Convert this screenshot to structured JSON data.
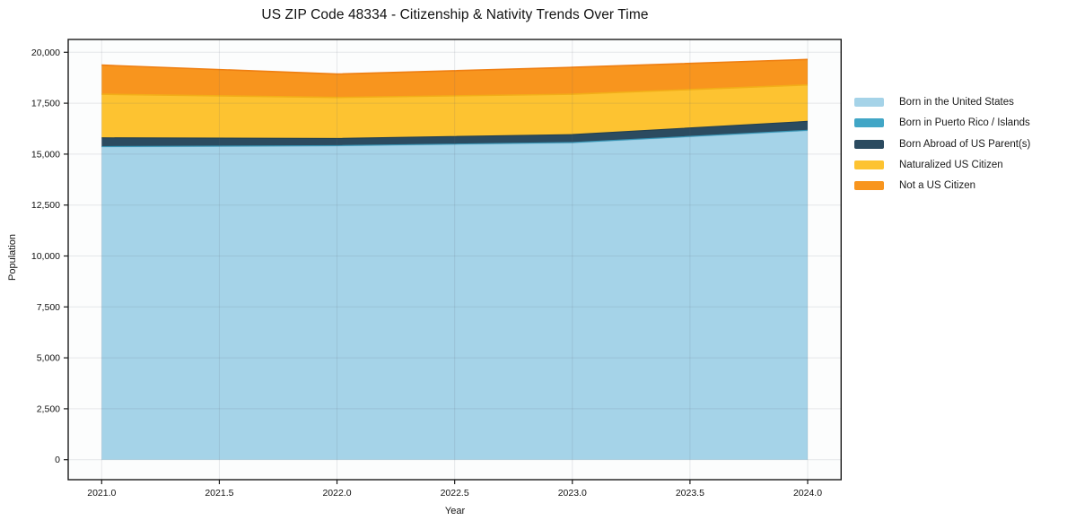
{
  "title": "US ZIP Code 48334 - Citizenship & Nativity Trends Over Time",
  "chart_data": {
    "type": "area",
    "stacked": true,
    "title": "US ZIP Code 48334 - Citizenship & Nativity Trends Over Time",
    "xlabel": "Year",
    "ylabel": "Population",
    "x": [
      2021,
      2022,
      2023,
      2024
    ],
    "series": [
      {
        "name": "Born in the United States",
        "color": "#a5d3e8",
        "edge": "#8cc3dc",
        "values": [
          15350,
          15400,
          15550,
          16150
        ]
      },
      {
        "name": "Born in Puerto Rico / Islands",
        "color": "#41a6c6",
        "edge": "#3795b5",
        "values": [
          20,
          20,
          20,
          20
        ]
      },
      {
        "name": "Born Abroad of US Parent(s)",
        "color": "#2b4b60",
        "edge": "#24404f",
        "values": [
          430,
          350,
          390,
          440
        ]
      },
      {
        "name": "Naturalized US Citizen",
        "color": "#fdc331",
        "edge": "#f2ae18",
        "values": [
          2140,
          2010,
          1980,
          1790
        ]
      },
      {
        "name": "Not a US Citizen",
        "color": "#f8951e",
        "edge": "#ef7f12",
        "values": [
          1430,
          1150,
          1320,
          1250
        ]
      }
    ],
    "xlim": [
      2021,
      2024
    ],
    "ylim": [
      0,
      20000
    ],
    "xticks": [
      2021.0,
      2021.5,
      2022.0,
      2022.5,
      2023.0,
      2023.5,
      2024.0
    ],
    "xtick_labels": [
      "2021.0",
      "2021.5",
      "2022.0",
      "2022.5",
      "2023.0",
      "2023.5",
      "2024.0"
    ],
    "yticks": [
      0,
      2500,
      5000,
      7500,
      10000,
      12500,
      15000,
      17500,
      20000
    ],
    "ytick_labels": [
      "0",
      "2,500",
      "5,000",
      "7,500",
      "10,000",
      "12,500",
      "15,000",
      "17,500",
      "20,000"
    ],
    "grid": true,
    "legend_position": "right-outside",
    "colors": {
      "frame": "#1a1a1a",
      "grid": "rgba(90,100,110,0.14)",
      "plot_bg": "#fcfdfd",
      "tick_text": "#111111"
    }
  }
}
